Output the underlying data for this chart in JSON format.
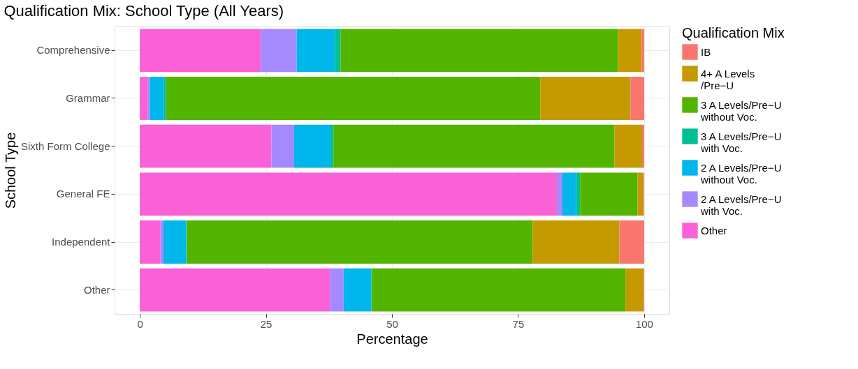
{
  "chart_data": {
    "type": "bar",
    "orientation": "horizontal",
    "stacked": true,
    "title": "Qualification Mix: School Type (All Years)",
    "xlabel": "Percentage",
    "ylabel": "School Type",
    "legend_title": "Qualification Mix",
    "legend": "right",
    "grid": true,
    "categories": [
      "Comprehensive",
      "Grammar",
      "Sixth Form College",
      "General FE",
      "Independent",
      "Other"
    ],
    "xlim": [
      -5,
      105
    ],
    "xticks": [
      0,
      25,
      50,
      75,
      100
    ],
    "series": [
      {
        "name": "Other",
        "color": "#fb61d7",
        "values": [
          24.0,
          1.6,
          26.1,
          82.7,
          4.1,
          37.7
        ]
      },
      {
        "name": "2 A Levels/Pre−U\nwith Voc.",
        "color": "#a58aff",
        "values": [
          7.1,
          0.4,
          4.5,
          1.1,
          0.6,
          2.7
        ]
      },
      {
        "name": "2 A Levels/Pre−U\nwithout Voc.",
        "color": "#00b6eb",
        "values": [
          7.6,
          2.8,
          7.2,
          2.7,
          4.5,
          5.5
        ]
      },
      {
        "name": "3 A Levels/Pre−U\nwith Voc.",
        "color": "#00c094",
        "values": [
          1.1,
          0.4,
          0.6,
          0.8,
          0.1,
          0.1
        ]
      },
      {
        "name": "3 A Levels/Pre−U\nwithout Voc.",
        "color": "#53b400",
        "values": [
          55.0,
          74.2,
          55.7,
          11.4,
          68.6,
          50.3
        ]
      },
      {
        "name": "4+ A Levels\n/Pre−U",
        "color": "#c49a00",
        "values": [
          4.7,
          17.9,
          5.5,
          1.1,
          17.2,
          3.6
        ]
      },
      {
        "name": "IB",
        "color": "#f8766d",
        "values": [
          0.5,
          2.7,
          0.4,
          0.2,
          4.9,
          0.1
        ]
      }
    ]
  }
}
